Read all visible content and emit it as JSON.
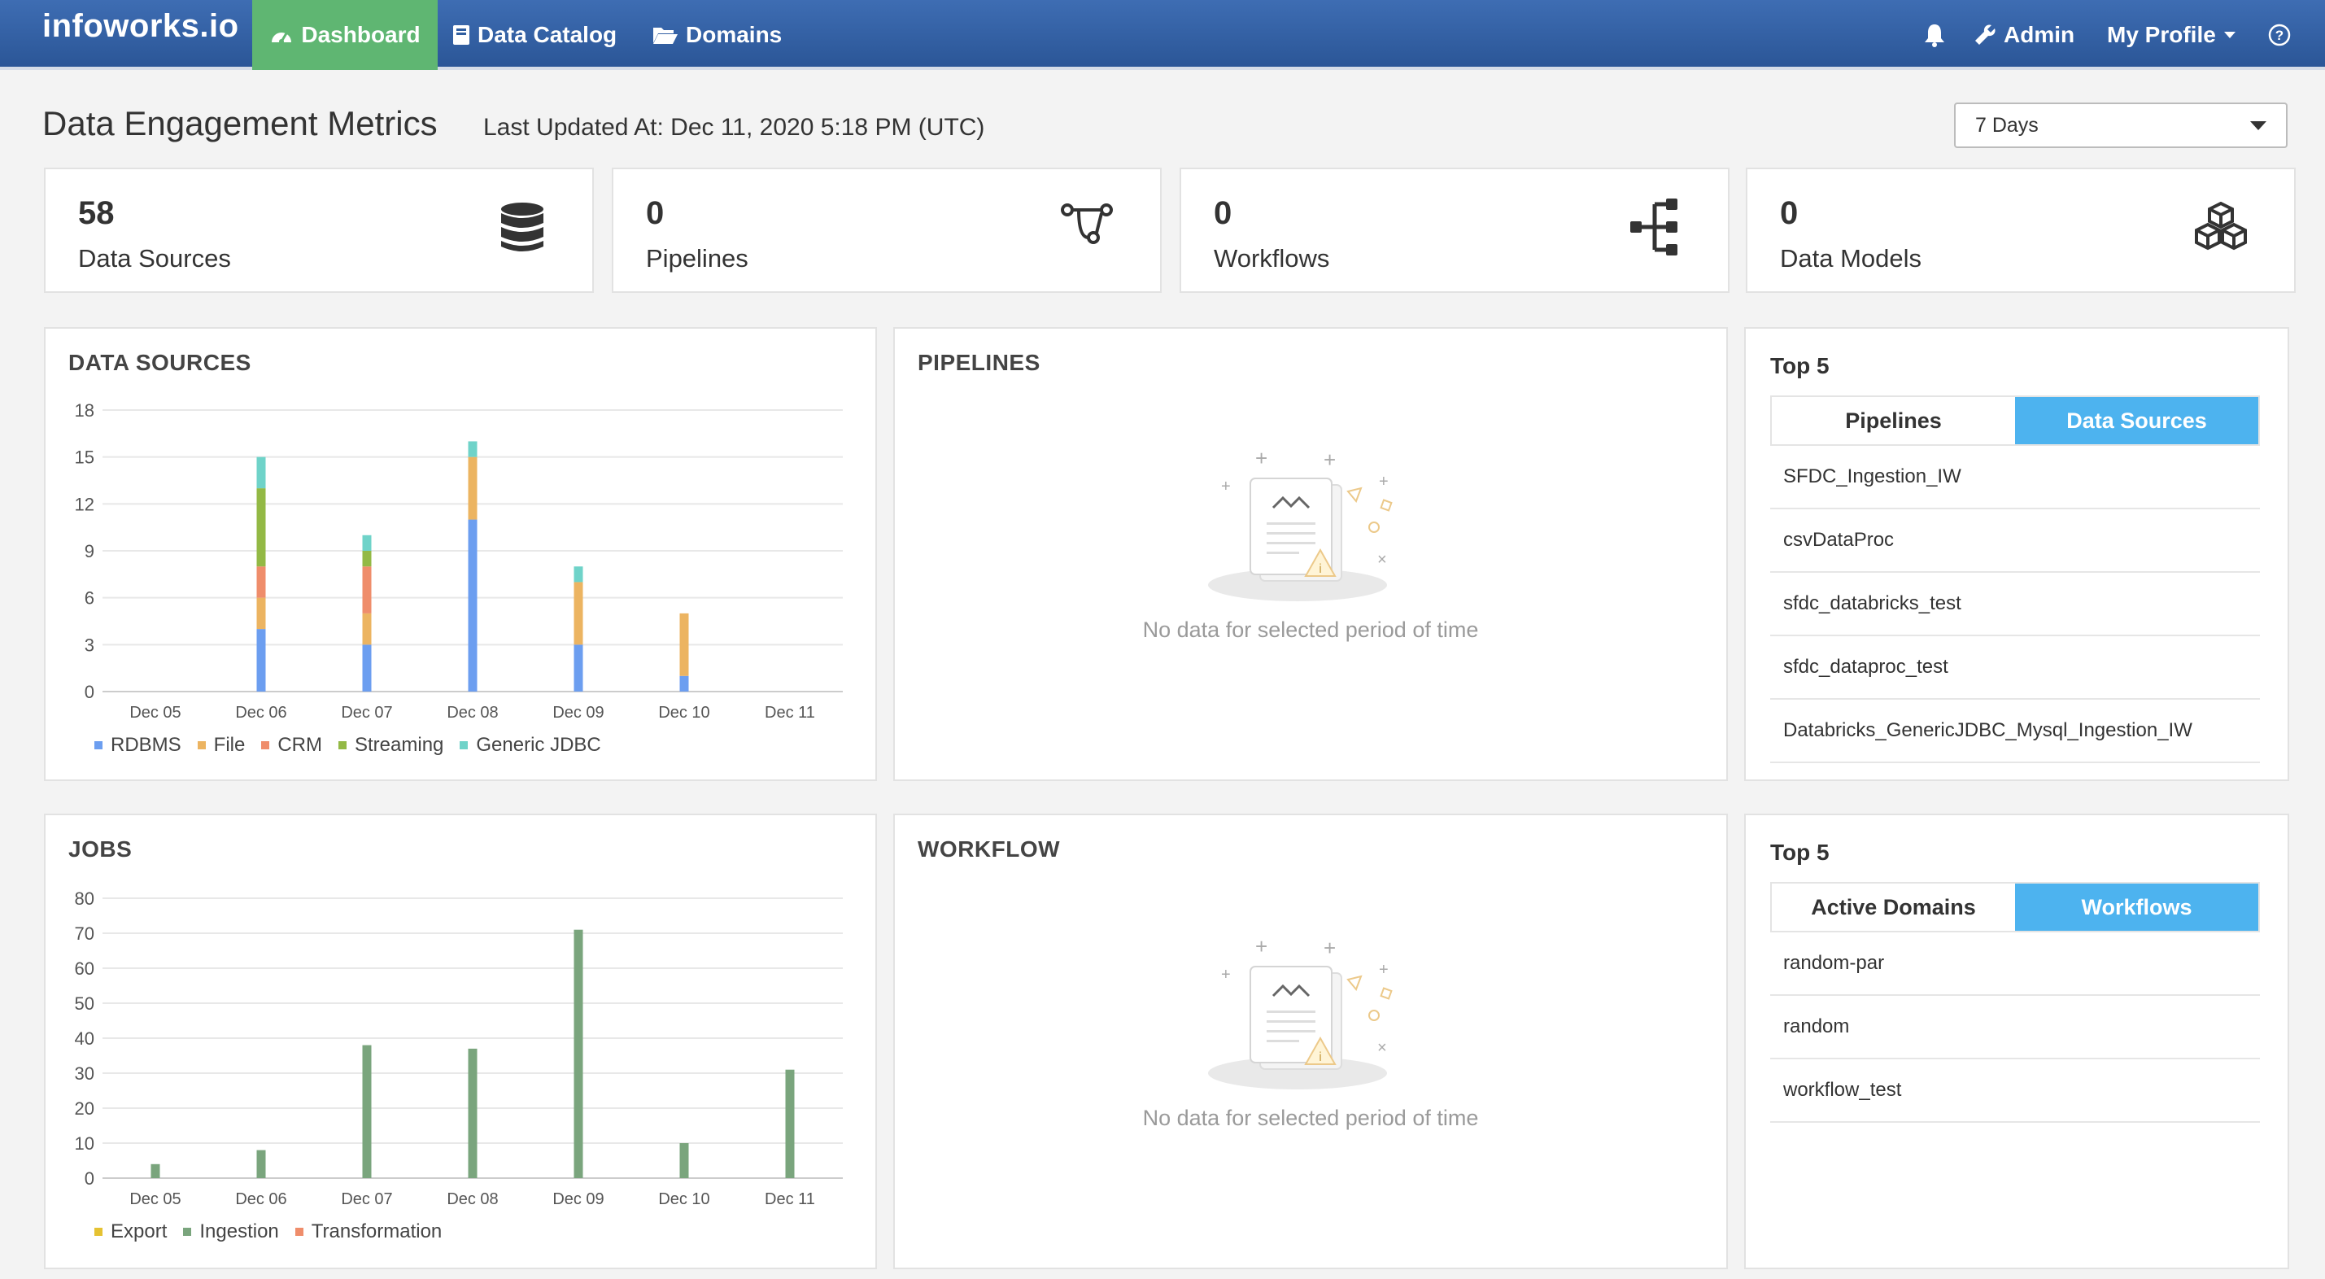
{
  "nav": {
    "brand": "infoworks.io",
    "dashboard": "Dashboard",
    "data_catalog": "Data Catalog",
    "domains": "Domains",
    "admin": "Admin",
    "my_profile": "My Profile"
  },
  "header": {
    "title": "Data Engagement Metrics",
    "last_updated": "Last Updated At: Dec 11, 2020 5:18 PM (UTC)",
    "period": "7 Days"
  },
  "kpis": [
    {
      "value": "58",
      "label": "Data Sources",
      "icon": "database-icon"
    },
    {
      "value": "0",
      "label": "Pipelines",
      "icon": "pipeline-icon"
    },
    {
      "value": "0",
      "label": "Workflows",
      "icon": "workflow-icon"
    },
    {
      "value": "0",
      "label": "Data Models",
      "icon": "cubes-icon"
    }
  ],
  "panels": {
    "data_sources_title": "DATA SOURCES",
    "pipelines_title": "PIPELINES",
    "jobs_title": "JOBS",
    "workflow_title": "WORKFLOW",
    "empty_text": "No data for selected period of time"
  },
  "top5_sources": {
    "title": "Top 5",
    "tabs": [
      "Pipelines",
      "Data Sources"
    ],
    "active_tab": "Data Sources",
    "items": [
      "SFDC_Ingestion_IW",
      "csvDataProc",
      "sfdc_databricks_test",
      "sfdc_dataproc_test",
      "Databricks_GenericJDBC_Mysql_Ingestion_IW"
    ]
  },
  "top5_workflows": {
    "title": "Top 5",
    "tabs": [
      "Active Domains",
      "Workflows"
    ],
    "active_tab": "Workflows",
    "items": [
      "random-par",
      "random",
      "workflow_test"
    ]
  },
  "colors": {
    "nav_bg": "#2f5d9f",
    "nav_active": "#5fb672",
    "tab_active": "#4db3ef",
    "rdbms": "#6c9ef0",
    "file": "#ecb461",
    "crm": "#ef8d6b",
    "streaming": "#93b945",
    "generic_jdbc": "#6fd3c9",
    "export": "#e5c232",
    "ingestion": "#7aa57d",
    "transformation": "#ef8d6b"
  },
  "chart_data": [
    {
      "type": "bar",
      "stacked": true,
      "title": "DATA SOURCES",
      "categories": [
        "Dec 05",
        "Dec 06",
        "Dec 07",
        "Dec 08",
        "Dec 09",
        "Dec 10",
        "Dec 11"
      ],
      "ylim": [
        0,
        18
      ],
      "yticks": [
        0,
        3,
        6,
        9,
        12,
        15,
        18
      ],
      "grid": true,
      "legend": "bottom-left",
      "series": [
        {
          "name": "RDBMS",
          "color": "#6c9ef0",
          "values": [
            0,
            4,
            3,
            11,
            3,
            1,
            0
          ]
        },
        {
          "name": "File",
          "color": "#ecb461",
          "values": [
            0,
            2,
            2,
            4,
            4,
            4,
            0
          ]
        },
        {
          "name": "CRM",
          "color": "#ef8d6b",
          "values": [
            0,
            2,
            3,
            0,
            0,
            0,
            0
          ]
        },
        {
          "name": "Streaming",
          "color": "#93b945",
          "values": [
            0,
            5,
            1,
            0,
            0,
            0,
            0
          ]
        },
        {
          "name": "Generic JDBC",
          "color": "#6fd3c9",
          "values": [
            0,
            2,
            1,
            1,
            1,
            0,
            0
          ]
        }
      ]
    },
    {
      "type": "bar",
      "stacked": true,
      "title": "JOBS",
      "categories": [
        "Dec 05",
        "Dec 06",
        "Dec 07",
        "Dec 08",
        "Dec 09",
        "Dec 10",
        "Dec 11"
      ],
      "ylim": [
        0,
        80
      ],
      "yticks": [
        0,
        10,
        20,
        30,
        40,
        50,
        60,
        70,
        80
      ],
      "grid": true,
      "legend": "bottom-left",
      "series": [
        {
          "name": "Export",
          "color": "#e5c232",
          "values": [
            0,
            0,
            0,
            0,
            0,
            0,
            0
          ]
        },
        {
          "name": "Ingestion",
          "color": "#7aa57d",
          "values": [
            4,
            8,
            38,
            37,
            71,
            10,
            31
          ]
        },
        {
          "name": "Transformation",
          "color": "#ef8d6b",
          "values": [
            0,
            0,
            0,
            0,
            0,
            0,
            0
          ]
        }
      ]
    }
  ]
}
